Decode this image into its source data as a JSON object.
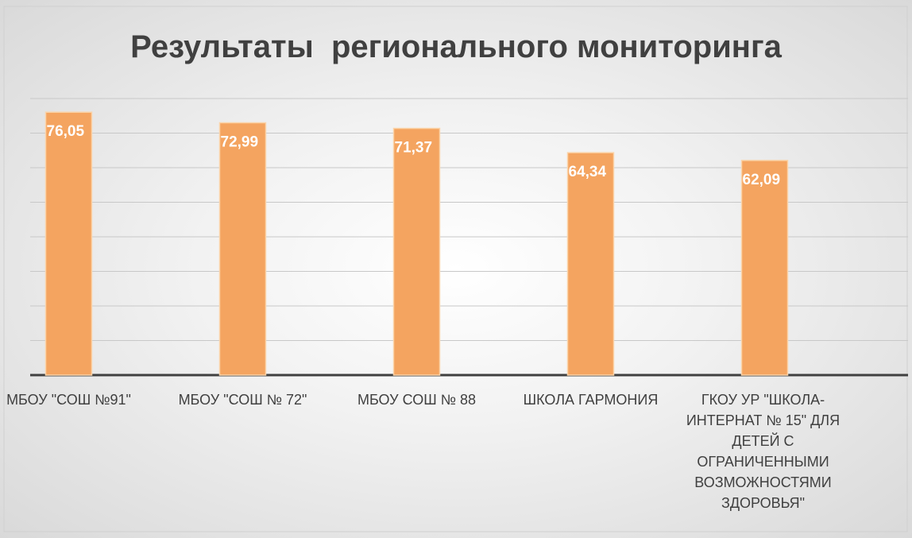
{
  "chart_data": {
    "type": "bar",
    "title": "Результаты  регионального мониторинга",
    "categories": [
      "МБОУ \"СОШ №91\"",
      "МБОУ \"СОШ № 72\"",
      "МБОУ СОШ № 88",
      "ШКОЛА ГАРМОНИЯ",
      "ГКОУ УР \"ШКОЛА-ИНТЕРНАТ № 15\" ДЛЯ ДЕТЕЙ С ОГРАНИЧЕННЫМИ ВОЗМОЖНОСТЯМИ ЗДОРОВЬЯ\""
    ],
    "values": [
      76.05,
      72.99,
      71.37,
      64.34,
      62.09
    ],
    "value_labels": [
      "76,05",
      "72,99",
      "71,37",
      "64,34",
      "62,09"
    ],
    "color": "#f4a460",
    "ylim": [
      0,
      80
    ],
    "yticks": [
      0,
      10,
      20,
      30,
      40,
      50,
      60,
      70,
      80
    ],
    "grid": true
  }
}
